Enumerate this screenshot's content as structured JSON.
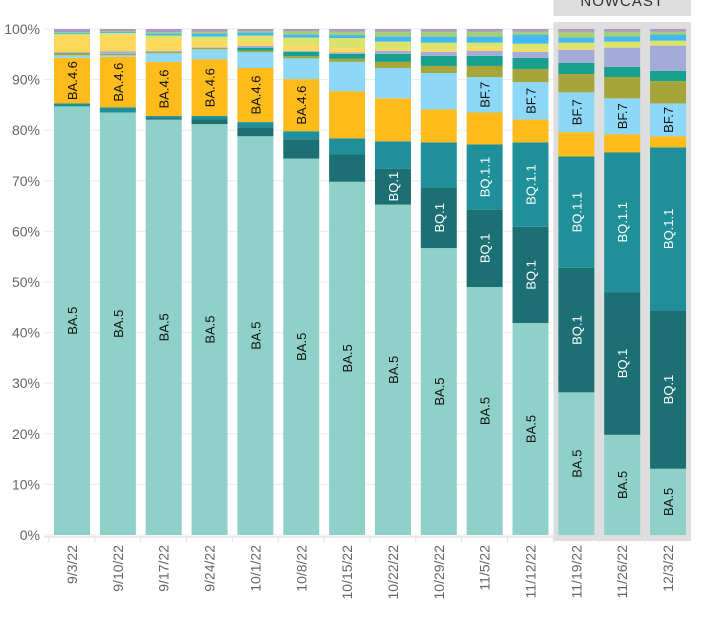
{
  "chart_data": {
    "type": "bar",
    "stacked": true,
    "title": "",
    "xlabel": "",
    "ylabel": "",
    "ylim": [
      0,
      100
    ],
    "y_ticks": [
      "0%",
      "10%",
      "20%",
      "30%",
      "40%",
      "50%",
      "60%",
      "70%",
      "80%",
      "90%",
      "100%"
    ],
    "grid": true,
    "nowcast_label": "NOWCAST",
    "nowcast_start_index": 11,
    "categories": [
      "9/3/22",
      "9/10/22",
      "9/17/22",
      "9/24/22",
      "10/1/22",
      "10/8/22",
      "10/15/22",
      "10/22/22",
      "10/29/22",
      "11/5/22",
      "11/12/22",
      "11/19/22",
      "11/26/22",
      "12/3/22"
    ],
    "series": [
      {
        "name": "BA.5",
        "color": "#8fd1c8",
        "text_color": "#111111",
        "labeled_weeks": [
          0,
          1,
          2,
          3,
          4,
          5,
          6,
          7,
          8,
          9,
          10,
          11,
          12,
          13
        ],
        "values": [
          84.7,
          83.5,
          82.1,
          81.2,
          78.8,
          74.4,
          69.8,
          65.3,
          56.7,
          49.0,
          41.9,
          28.2,
          19.8,
          13.1
        ]
      },
      {
        "name": "BQ.1",
        "color": "#1c7073",
        "text_color": "#ffffff",
        "labeled_weeks": [
          7,
          8,
          9,
          10,
          11,
          12,
          13
        ],
        "values": [
          0,
          0,
          0.3,
          1.0,
          1.8,
          3.8,
          5.4,
          7.1,
          12.0,
          15.3,
          19.0,
          24.6,
          28.2,
          31.3
        ]
      },
      {
        "name": "BQ.1.1",
        "color": "#1f9099",
        "text_color": "#ffffff",
        "labeled_weeks": [
          9,
          10,
          11,
          12,
          13
        ],
        "values": [
          0.6,
          1.0,
          0.4,
          0.6,
          1.0,
          1.6,
          3.2,
          5.4,
          8.9,
          12.9,
          16.7,
          22.0,
          27.6,
          32.2
        ]
      },
      {
        "name": "BA.4.6",
        "color": "#fdbb1c",
        "text_color": "#111111",
        "labeled_weeks": [
          0,
          1,
          2,
          3,
          4,
          5
        ],
        "values": [
          9.0,
          10.0,
          10.7,
          11.2,
          10.7,
          10.3,
          9.3,
          8.5,
          6.5,
          6.3,
          4.5,
          4.8,
          3.6,
          2.2
        ]
      },
      {
        "name": "BF.7",
        "color": "#8dd7f7",
        "text_color": "#111111",
        "labeled_weeks": [
          9,
          10,
          11,
          12,
          13
        ],
        "values": [
          0.5,
          0.3,
          1.7,
          2.0,
          3.1,
          4.1,
          5.8,
          6.0,
          7.2,
          7.0,
          7.4,
          7.9,
          7.1,
          6.5
        ]
      },
      {
        "name": "",
        "color": "#a5a539",
        "labeled_weeks": [],
        "values": [
          0.5,
          0.3,
          0.3,
          0.3,
          0.3,
          0.4,
          0.6,
          1.2,
          1.4,
          2.2,
          2.6,
          3.6,
          4.2,
          4.4
        ]
      },
      {
        "name": "",
        "color": "#18a08e",
        "labeled_weeks": [],
        "values": [
          0,
          0,
          0,
          0,
          0.6,
          0.9,
          1.0,
          1.6,
          2.0,
          2.0,
          2.2,
          2.2,
          2.0,
          2.0
        ]
      },
      {
        "name": "",
        "color": "#a3acd8",
        "labeled_weeks": [],
        "values": [
          0.2,
          0.5,
          0.2,
          0.1,
          0.4,
          0.2,
          0.3,
          0.6,
          0.8,
          1.0,
          1.2,
          2.6,
          3.8,
          5.0
        ]
      },
      {
        "name": "",
        "color": "#fdd85a",
        "labeled_weeks": [],
        "values": [
          3.2,
          3.2,
          2.4,
          1.3,
          1.0,
          1.0,
          0.8,
          0.4,
          0.4,
          0.6,
          0.4,
          0.2,
          0,
          0
        ]
      },
      {
        "name": "",
        "color": "#dbe36a",
        "labeled_weeks": [],
        "values": [
          0.3,
          0.4,
          0.6,
          0.8,
          1.0,
          1.6,
          2.0,
          1.4,
          1.4,
          1.0,
          1.2,
          1.2,
          1.2,
          1.0
        ]
      },
      {
        "name": "",
        "color": "#42baf0",
        "labeled_weeks": [],
        "values": [
          0.2,
          0.2,
          0.4,
          0.6,
          0.6,
          0.6,
          0.6,
          1.0,
          1.2,
          1.2,
          1.8,
          1.0,
          1.0,
          1.2
        ]
      },
      {
        "name": "",
        "color": "#a7cd7a",
        "labeled_weeks": [],
        "values": [
          0.2,
          0.2,
          0.3,
          0.4,
          0.3,
          0.7,
          0.7,
          1.0,
          1.0,
          1.0,
          0.6,
          1.2,
          1.0,
          0.6
        ]
      },
      {
        "name": "",
        "color": "#ab98c4",
        "labeled_weeks": [],
        "values": [
          0.6,
          0.4,
          0.6,
          0.5,
          0.4,
          0.4,
          0.5,
          0.5,
          0.5,
          0.5,
          0.5,
          0.5,
          0.5,
          0.5
        ]
      }
    ]
  }
}
